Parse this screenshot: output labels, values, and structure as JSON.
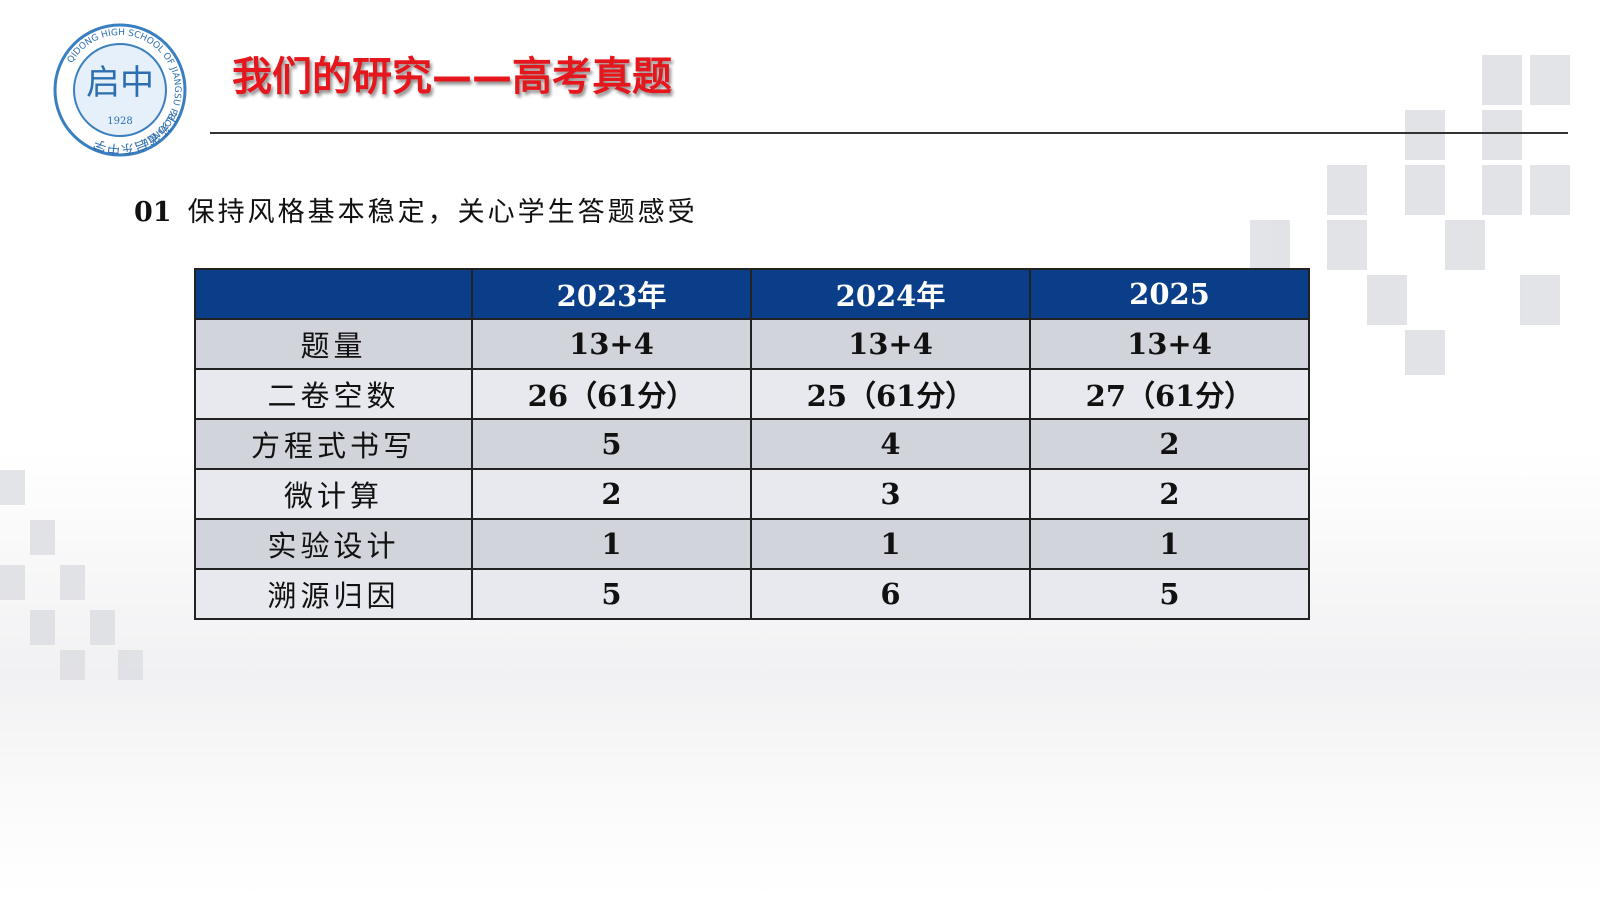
{
  "logo": {
    "name_cn": "江苏省启东中学",
    "name_en": "QIDONG HIGH SCHOOL OF JIANGSU PROVINCE",
    "emblem": "启中",
    "year": "1928"
  },
  "header": {
    "title": "我们的研究——高考真题"
  },
  "section": {
    "number": "01",
    "text": "保持风格基本稳定，关心学生答题感受"
  },
  "table": {
    "columns": [
      "2023年",
      "2024年",
      "2025"
    ],
    "rows": [
      [
        "题量",
        "13+4",
        "13+4",
        "13+4"
      ],
      [
        "二卷空数",
        "26（61分）",
        "25（61分）",
        "27（61分）"
      ],
      [
        "方程式书写",
        5,
        4,
        2
      ],
      [
        "微计算",
        2,
        3,
        2
      ],
      [
        "实验设计",
        1,
        1,
        1
      ],
      [
        "溯源归因",
        5,
        6,
        5
      ]
    ]
  }
}
